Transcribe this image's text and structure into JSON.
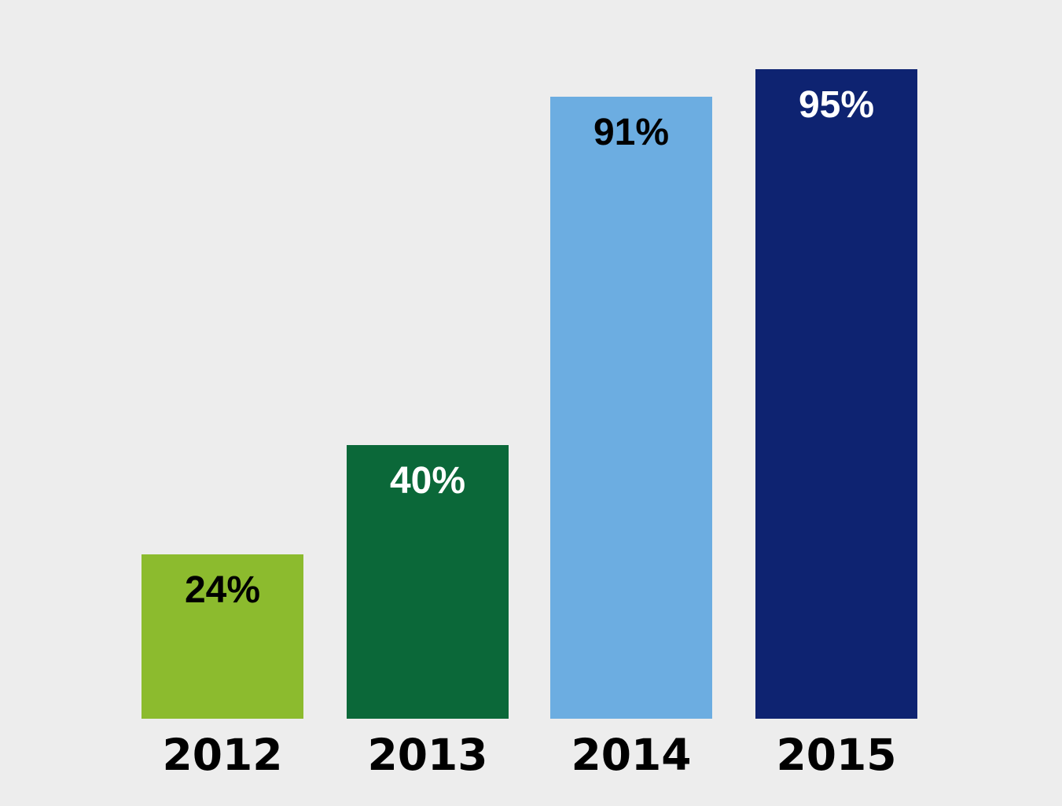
{
  "chart_data": {
    "type": "bar",
    "title": "",
    "xlabel": "",
    "ylabel": "",
    "categories": [
      "2012",
      "2013",
      "2014",
      "2015"
    ],
    "values": [
      24,
      40,
      91,
      95
    ],
    "value_labels": [
      "24%",
      "40%",
      "91%",
      "95%"
    ],
    "bar_colors": [
      "#8cbb2e",
      "#0b6839",
      "#6cade1",
      "#0e2371"
    ],
    "value_label_colors": [
      "#000000",
      "#ffffff",
      "#000000",
      "#ffffff"
    ],
    "ylim": [
      0,
      100
    ],
    "grid": false,
    "legend": false,
    "axis_lines": false,
    "value_label_position": "inside-top",
    "background_color": "#ededed"
  }
}
